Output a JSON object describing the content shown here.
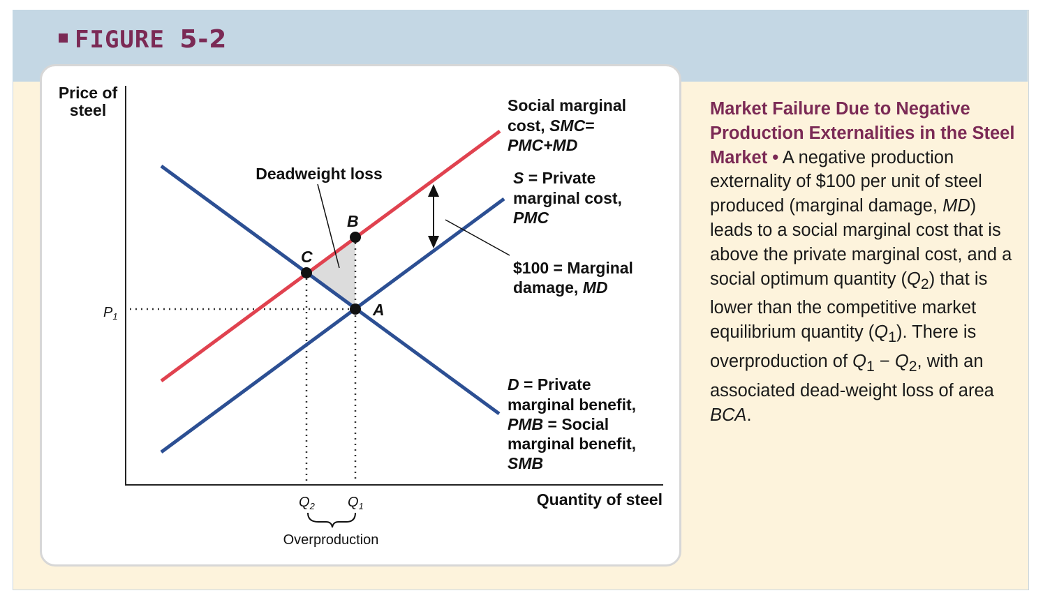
{
  "figure": {
    "label_word": "FIGURE",
    "label_num": "5-2"
  },
  "diagram": {
    "y_axis_label_line1": "Price of",
    "y_axis_label_line2": "steel",
    "x_axis_label": "Quantity of steel",
    "p1_label": "P",
    "p1_sub": "1",
    "q2_label": "Q",
    "q2_sub": "2",
    "q1_label": "Q",
    "q1_sub": "1",
    "overproduction_label": "Overproduction",
    "deadweight_label": "Deadweight loss",
    "point_a": "A",
    "point_b": "B",
    "point_c": "C",
    "smc_line1": "Social marginal",
    "smc_line2a": "cost, ",
    "smc_line2b": "SMC",
    "smc_line2c": "=",
    "smc_line3": "PMC+MD",
    "s_line1a": "S",
    "s_line1b": " = Private",
    "s_line2": "marginal cost,",
    "s_line3": "PMC",
    "md_line1": "$100 = Marginal",
    "md_line2a": "damage, ",
    "md_line2b": "MD",
    "d_line1a": "D",
    "d_line1b": " = Private",
    "d_line2": "marginal benefit,",
    "d_line3a": "PMB",
    "d_line3b": " = Social",
    "d_line4": "marginal benefit,",
    "d_line5": "SMB",
    "colors": {
      "smc_line": "#e0424f",
      "supply_demand_line": "#2c4f93",
      "deadweight_fill": "#dcdcdc",
      "accent": "#7b2a55"
    }
  },
  "caption": {
    "heading": "Market Failure Due to Negative Production Externalities in the Steel Market",
    "bullet": "•",
    "t1": " A negative production externality of $100 per unit of steel produced (marginal damage, ",
    "md": "MD",
    "t2": ") leads to a social marginal cost that is above the private marginal cost, and a social optimum quantity (",
    "q2": "Q",
    "q2sub": "2",
    "t3": ") that is lower than the competitive market equilibrium quantity (",
    "q1": "Q",
    "q1sub": "1",
    "t4": "). There is overproduction of ",
    "q1b": "Q",
    "q1bsub": "1",
    "minus": " − ",
    "q2b": "Q",
    "q2bsub": "2",
    "t5": ", with an associated dead-weight loss of area ",
    "bca": "BCA",
    "t6": "."
  }
}
